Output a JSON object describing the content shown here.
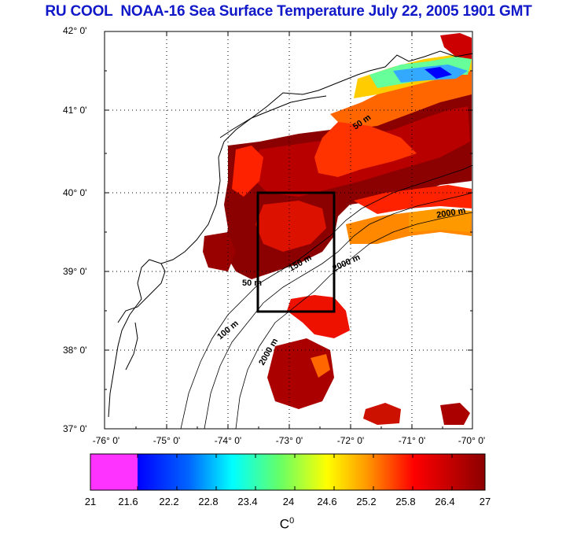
{
  "title": "RU COOL  NOAA-16 Sea Surface Temperature July 22, 2005 1901 GMT",
  "map": {
    "lat_labels": [
      "42° 0'",
      "41° 0'",
      "40° 0'",
      "39° 0'",
      "38° 0'",
      "37° 0'"
    ],
    "lon_labels": [
      "-76° 0'",
      "-75° 0'",
      "-74° 0'",
      "-73° 0'",
      "-72° 0'",
      "-71° 0'",
      "-70° 0'"
    ],
    "contour_labels": [
      "50 m",
      "100 m",
      "150 m",
      "2000 m"
    ],
    "box": {
      "lon_min": -73.5,
      "lon_max": -72.5,
      "lat_min": 38.5,
      "lat_max": 40.0
    }
  },
  "colorbar": {
    "ticks": [
      "21",
      "21.6",
      "22.2",
      "22.8",
      "23.4",
      "24",
      "24.6",
      "25.2",
      "25.8",
      "26.4",
      "27"
    ],
    "unit_base": "C",
    "unit_sup": "0",
    "colors": [
      "#ff33ff",
      "#0000ff",
      "#00aaff",
      "#00ffff",
      "#66ff66",
      "#ffff00",
      "#ff9900",
      "#ff0000",
      "#8b0000"
    ]
  }
}
